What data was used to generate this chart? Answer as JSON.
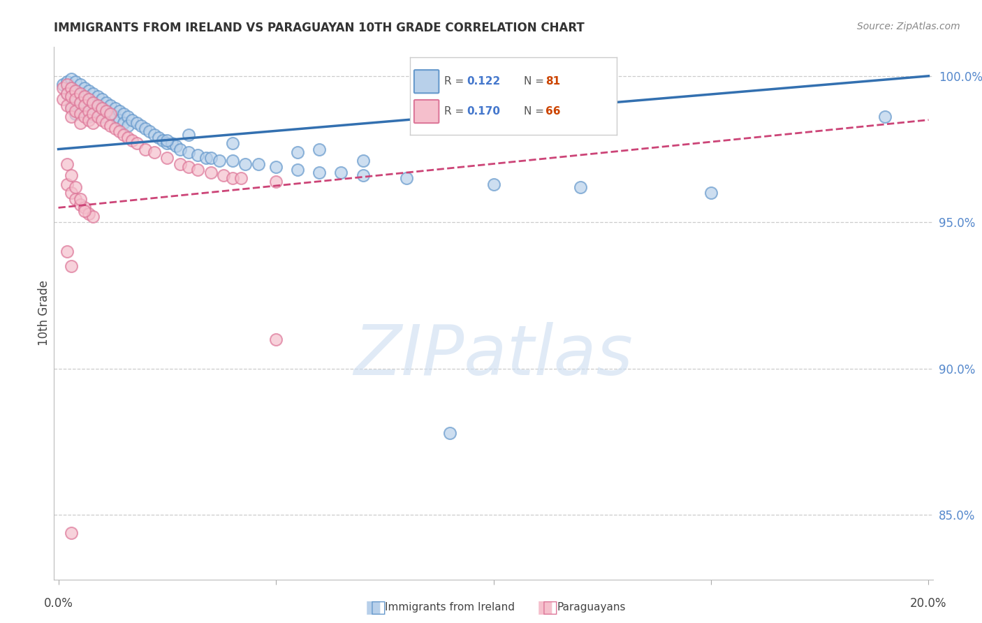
{
  "title": "IMMIGRANTS FROM IRELAND VS PARAGUAYAN 10TH GRADE CORRELATION CHART",
  "source": "Source: ZipAtlas.com",
  "ylabel": "10th Grade",
  "ytick_vals": [
    0.85,
    0.9,
    0.95,
    1.0
  ],
  "ytick_labels": [
    "85.0%",
    "90.0%",
    "95.0%",
    "100.0%"
  ],
  "xlim": [
    -0.001,
    0.201
  ],
  "ylim": [
    0.828,
    1.01
  ],
  "legend_r1": "0.122",
  "legend_n1": "81",
  "legend_r2": "0.170",
  "legend_n2": "66",
  "watermark": "ZIPatlas",
  "ireland_fill": "#b8d0ea",
  "ireland_edge": "#6699cc",
  "paraguay_fill": "#f5bfcc",
  "paraguay_edge": "#dd7799",
  "ireland_line_color": "#3370b0",
  "paraguay_line_color": "#cc4477",
  "r_color": "#4477cc",
  "n_color": "#cc4400",
  "grid_color": "#cccccc",
  "title_color": "#333333",
  "source_color": "#888888",
  "label_color": "#444444",
  "tick_color": "#5588cc",
  "ireland_x": [
    0.001,
    0.002,
    0.002,
    0.003,
    0.003,
    0.003,
    0.003,
    0.004,
    0.004,
    0.004,
    0.004,
    0.004,
    0.005,
    0.005,
    0.005,
    0.005,
    0.006,
    0.006,
    0.006,
    0.006,
    0.007,
    0.007,
    0.007,
    0.007,
    0.008,
    0.008,
    0.008,
    0.009,
    0.009,
    0.01,
    0.01,
    0.01,
    0.011,
    0.011,
    0.012,
    0.012,
    0.013,
    0.013,
    0.014,
    0.014,
    0.015,
    0.015,
    0.016,
    0.016,
    0.017,
    0.018,
    0.019,
    0.02,
    0.021,
    0.022,
    0.023,
    0.024,
    0.025,
    0.026,
    0.027,
    0.028,
    0.03,
    0.032,
    0.034,
    0.035,
    0.037,
    0.04,
    0.043,
    0.046,
    0.05,
    0.055,
    0.06,
    0.065,
    0.07,
    0.08,
    0.1,
    0.12,
    0.15,
    0.06,
    0.07,
    0.04,
    0.055,
    0.03,
    0.025,
    0.09,
    0.19
  ],
  "ireland_y": [
    0.997,
    0.998,
    0.994,
    0.999,
    0.996,
    0.993,
    0.99,
    0.998,
    0.995,
    0.992,
    0.989,
    0.987,
    0.997,
    0.994,
    0.991,
    0.988,
    0.996,
    0.993,
    0.99,
    0.987,
    0.995,
    0.992,
    0.989,
    0.986,
    0.994,
    0.991,
    0.988,
    0.993,
    0.99,
    0.992,
    0.989,
    0.986,
    0.991,
    0.988,
    0.99,
    0.987,
    0.989,
    0.986,
    0.988,
    0.985,
    0.987,
    0.984,
    0.986,
    0.983,
    0.985,
    0.984,
    0.983,
    0.982,
    0.981,
    0.98,
    0.979,
    0.978,
    0.977,
    0.977,
    0.976,
    0.975,
    0.974,
    0.973,
    0.972,
    0.972,
    0.971,
    0.971,
    0.97,
    0.97,
    0.969,
    0.968,
    0.967,
    0.967,
    0.966,
    0.965,
    0.963,
    0.962,
    0.96,
    0.975,
    0.971,
    0.977,
    0.974,
    0.98,
    0.978,
    0.878,
    0.986
  ],
  "paraguay_x": [
    0.001,
    0.001,
    0.002,
    0.002,
    0.002,
    0.003,
    0.003,
    0.003,
    0.003,
    0.004,
    0.004,
    0.004,
    0.005,
    0.005,
    0.005,
    0.005,
    0.006,
    0.006,
    0.006,
    0.007,
    0.007,
    0.007,
    0.008,
    0.008,
    0.008,
    0.009,
    0.009,
    0.01,
    0.01,
    0.011,
    0.011,
    0.012,
    0.012,
    0.013,
    0.014,
    0.015,
    0.016,
    0.017,
    0.018,
    0.02,
    0.022,
    0.025,
    0.028,
    0.03,
    0.032,
    0.035,
    0.038,
    0.04,
    0.042,
    0.05,
    0.002,
    0.003,
    0.004,
    0.005,
    0.006,
    0.007,
    0.008,
    0.002,
    0.003,
    0.004,
    0.005,
    0.006,
    0.002,
    0.003,
    0.05,
    0.003
  ],
  "paraguay_y": [
    0.996,
    0.992,
    0.997,
    0.994,
    0.99,
    0.996,
    0.993,
    0.989,
    0.986,
    0.995,
    0.992,
    0.988,
    0.994,
    0.991,
    0.987,
    0.984,
    0.993,
    0.99,
    0.986,
    0.992,
    0.988,
    0.985,
    0.991,
    0.987,
    0.984,
    0.99,
    0.986,
    0.989,
    0.985,
    0.988,
    0.984,
    0.987,
    0.983,
    0.982,
    0.981,
    0.98,
    0.979,
    0.978,
    0.977,
    0.975,
    0.974,
    0.972,
    0.97,
    0.969,
    0.968,
    0.967,
    0.966,
    0.965,
    0.965,
    0.964,
    0.963,
    0.96,
    0.958,
    0.956,
    0.955,
    0.953,
    0.952,
    0.97,
    0.966,
    0.962,
    0.958,
    0.954,
    0.94,
    0.935,
    0.91,
    0.844
  ],
  "blue_line_x": [
    0.0,
    0.2
  ],
  "blue_line_y": [
    0.975,
    1.0
  ],
  "pink_line_x": [
    0.0,
    0.2
  ],
  "pink_line_y": [
    0.955,
    0.985
  ]
}
